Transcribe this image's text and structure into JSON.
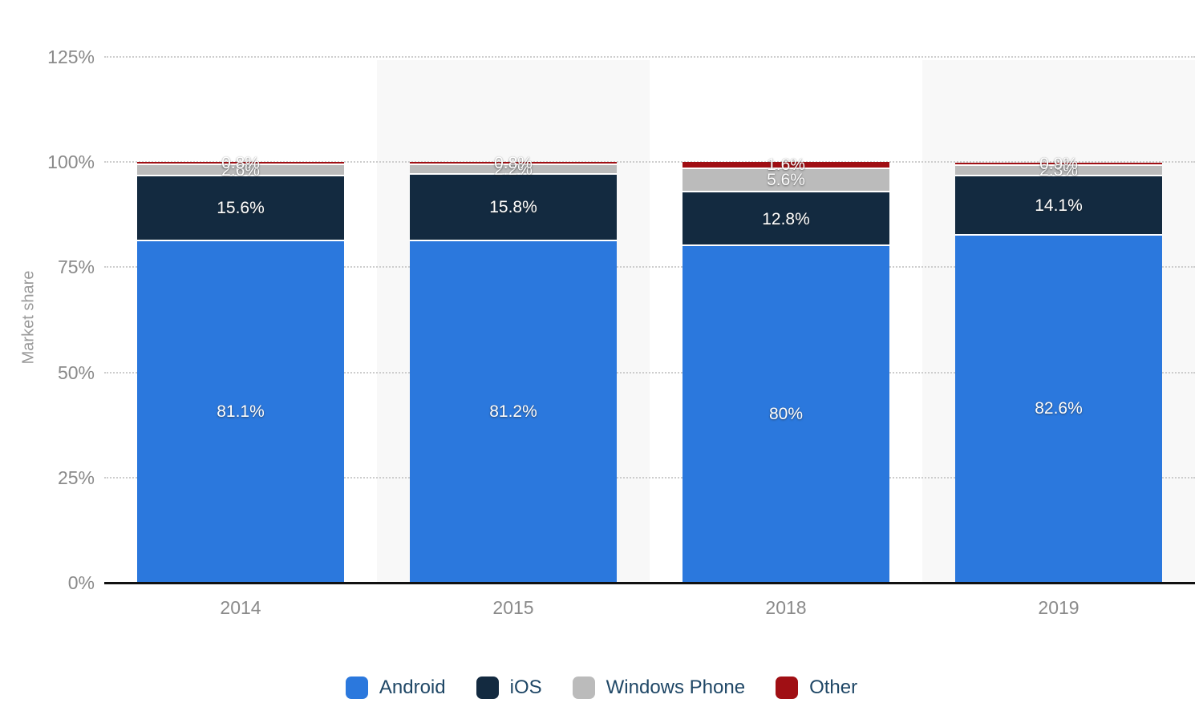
{
  "chart_data": {
    "type": "bar",
    "stacked": true,
    "title": "",
    "xlabel": "",
    "ylabel": "Market share",
    "categories": [
      "2014",
      "2015",
      "2018",
      "2019"
    ],
    "series": [
      {
        "name": "Android",
        "color": "#2b78dd",
        "values": [
          81.1,
          81.2,
          80.0,
          82.6
        ],
        "labels": [
          "81.1%",
          "81.2%",
          "80%",
          "82.6%"
        ]
      },
      {
        "name": "iOS",
        "color": "#132a40",
        "values": [
          15.6,
          15.8,
          12.8,
          14.1
        ],
        "labels": [
          "15.6%",
          "15.8%",
          "12.8%",
          "14.1%"
        ]
      },
      {
        "name": "Windows Phone",
        "color": "#bbbbbb",
        "values": [
          2.6,
          2.2,
          5.6,
          2.3
        ],
        "labels": [
          "2.6%",
          "2.2%",
          "5.6%",
          "2.3%"
        ]
      },
      {
        "name": "Other",
        "color": "#a00f14",
        "values": [
          0.8,
          0.8,
          1.6,
          0.9
        ],
        "labels": [
          "0.8%",
          "0.8%",
          "1.6%",
          "0.9%"
        ]
      }
    ],
    "yticks": [
      {
        "pct": 0,
        "label": "0%"
      },
      {
        "pct": 25,
        "label": "25%"
      },
      {
        "pct": 50,
        "label": "50%"
      },
      {
        "pct": 75,
        "label": "75%"
      },
      {
        "pct": 100,
        "label": "100%"
      },
      {
        "pct": 125,
        "label": "125%"
      }
    ],
    "ylim": [
      0,
      125
    ],
    "grid": "horizontal-dotted",
    "legend_position": "bottom",
    "banded_categories": [
      "2015",
      "2019"
    ],
    "band_color": "#f8f8f8",
    "value_label_color": "#ffffff",
    "axis_text_color": "#8a8a8a",
    "legend_text_color": "#1f4766"
  }
}
